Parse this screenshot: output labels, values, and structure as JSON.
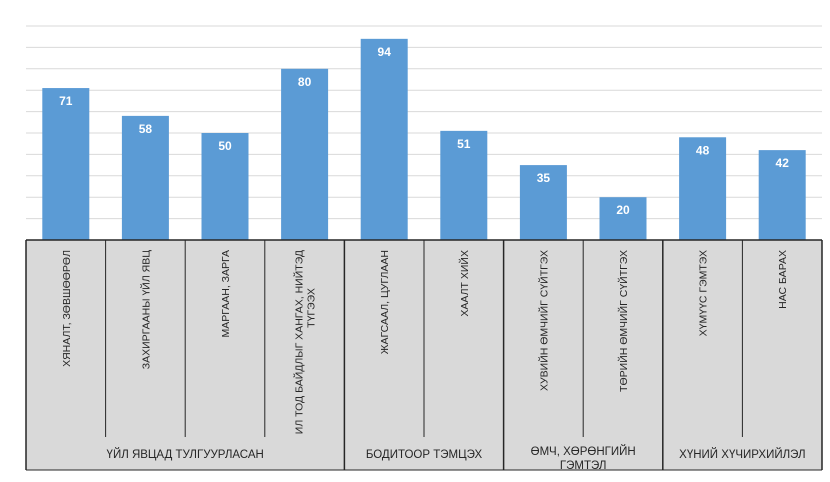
{
  "chart_data": {
    "type": "bar",
    "categories": [
      "ХЯНАЛТ, ЗӨВШӨӨРӨЛ",
      "ЗАХИРГААНЫ ҮЙЛ ЯВЦ",
      "МАРГААН, ЗАРГА",
      "ИЛ ТОД БАЙДЛЫГ ХАНГАХ, НИЙТЭД ТҮГЭЭХ",
      "ЖАГСААЛ, ЦУГЛААН",
      "ХААЛТ ХИЙХ",
      "ХУВИЙН ӨМЧИЙГ СҮЙТГЭХ",
      "ТӨРИЙН ӨМЧИЙГ СҮЙТГЭХ",
      "ХҮМҮҮС ГЭМТЭХ",
      "НАС БАРАХ"
    ],
    "values": [
      71,
      58,
      50,
      80,
      94,
      51,
      35,
      20,
      48,
      42
    ],
    "groups": [
      {
        "label": "ҮЙЛ ЯВЦАД ТУЛГУУРЛАСАН",
        "start": 0,
        "count": 4
      },
      {
        "label": "БОДИТООР ТЭМЦЭХ",
        "start": 4,
        "count": 2
      },
      {
        "label": "ӨМЧ, ХӨРӨНГИЙН ГЭМТЭЛ",
        "start": 6,
        "count": 2
      },
      {
        "label": "ХҮНИЙ ХҮЧИРХИЙЛЭЛ",
        "start": 8,
        "count": 2
      }
    ],
    "ylim": [
      0,
      100
    ],
    "grid": true,
    "data_labels": true,
    "colors": {
      "bar": "#5b9bd5",
      "data_label": "#ffffff",
      "grid": "#d9d9d9",
      "table_bg": "#d9d9d9",
      "table_line": "#262626",
      "text": "#262626"
    }
  }
}
